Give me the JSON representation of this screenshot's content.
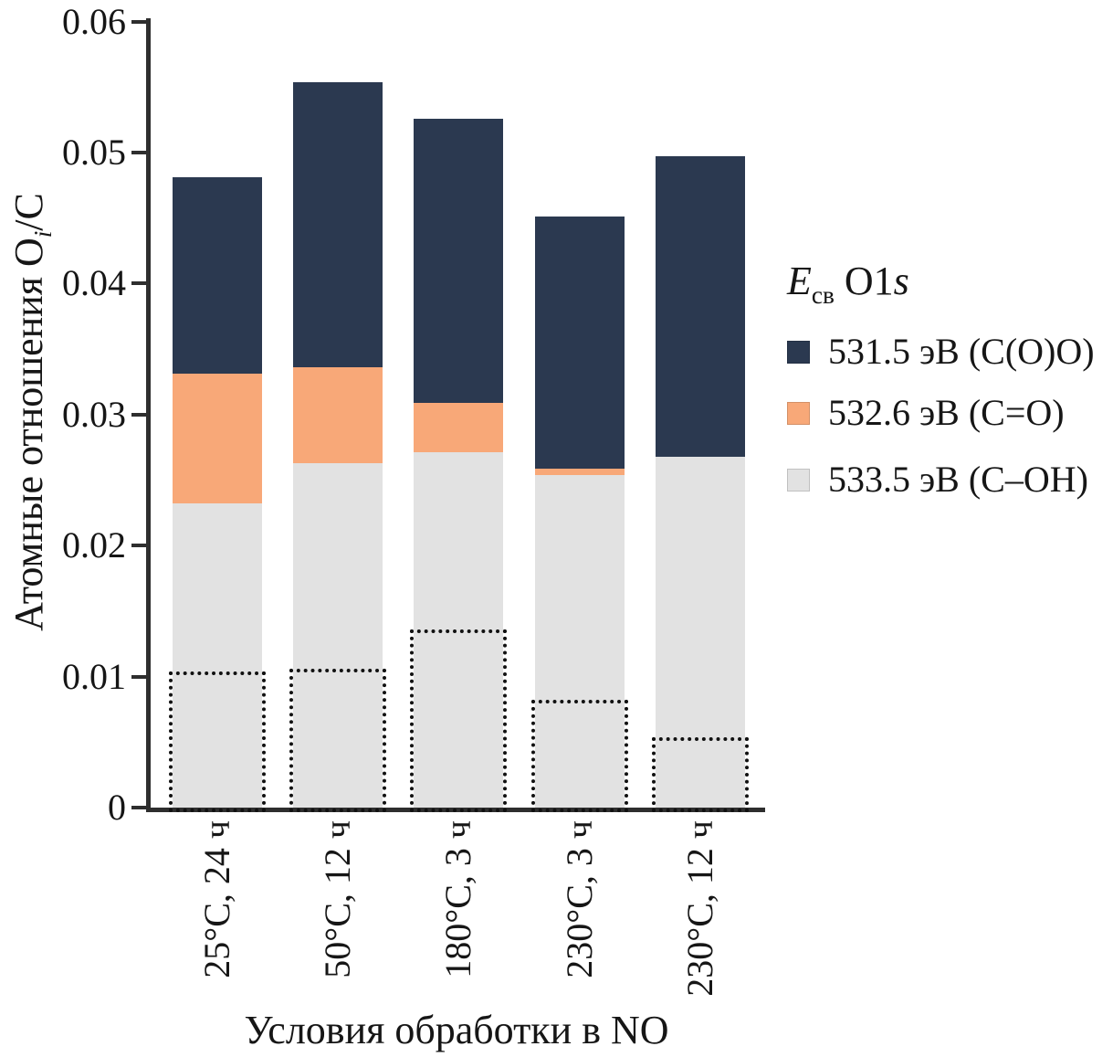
{
  "figure": {
    "background": "#ffffff"
  },
  "axes": {
    "x_label": "Условия обработки в NO",
    "y_label": {
      "main": "Атомные отношения O",
      "sub": "i",
      "rest": "/C"
    },
    "y_tick_labels": [
      "0",
      "0.01",
      "0.02",
      "0.03",
      "0.04",
      "0.05",
      "0.06"
    ]
  },
  "legend": {
    "title": {
      "e": "E",
      "sub": "св",
      "rest": " O1",
      "s_italic": "s"
    },
    "items": [
      {
        "label": "531.5 эВ (C(O)O)",
        "color": "#2b3950"
      },
      {
        "label": "532.6 эВ (C=O)",
        "color": "#f8a878"
      },
      {
        "label": "533.5 эВ (C–OH)",
        "color": "#e2e2e2"
      }
    ]
  },
  "chart_data": {
    "type": "bar",
    "stacked": true,
    "title": "",
    "xlabel": "Условия обработки в NO",
    "ylabel": "Атомные отношения Oi/C",
    "ylim": [
      0,
      0.06
    ],
    "yticks": [
      0,
      0.01,
      0.02,
      0.03,
      0.04,
      0.05,
      0.06
    ],
    "grid": false,
    "legend_position": "right",
    "legend_title": "Eсв O1s",
    "categories": [
      "25°C, 24 ч",
      "50°C, 12 ч",
      "180°C, 3 ч",
      "230°C, 3 ч",
      "230°C, 12 ч"
    ],
    "series": [
      {
        "name": "533.5 эВ (C–OH)",
        "color": "#e2e2e2",
        "values": [
          0.0232,
          0.0263,
          0.0271,
          0.0254,
          0.0268
        ]
      },
      {
        "name": "532.6 эВ (C=O)",
        "color": "#f8a878",
        "values": [
          0.0099,
          0.0073,
          0.0038,
          0.0005,
          0.0
        ]
      },
      {
        "name": "531.5 эВ (C(O)O)",
        "color": "#2b3950",
        "values": [
          0.015,
          0.0218,
          0.0217,
          0.0192,
          0.0229
        ]
      }
    ],
    "totals": [
      0.0481,
      0.0554,
      0.0526,
      0.0451,
      0.0497
    ],
    "dotted_overlay_values": [
      0.0104,
      0.0106,
      0.0136,
      0.0082,
      0.0054
    ]
  }
}
